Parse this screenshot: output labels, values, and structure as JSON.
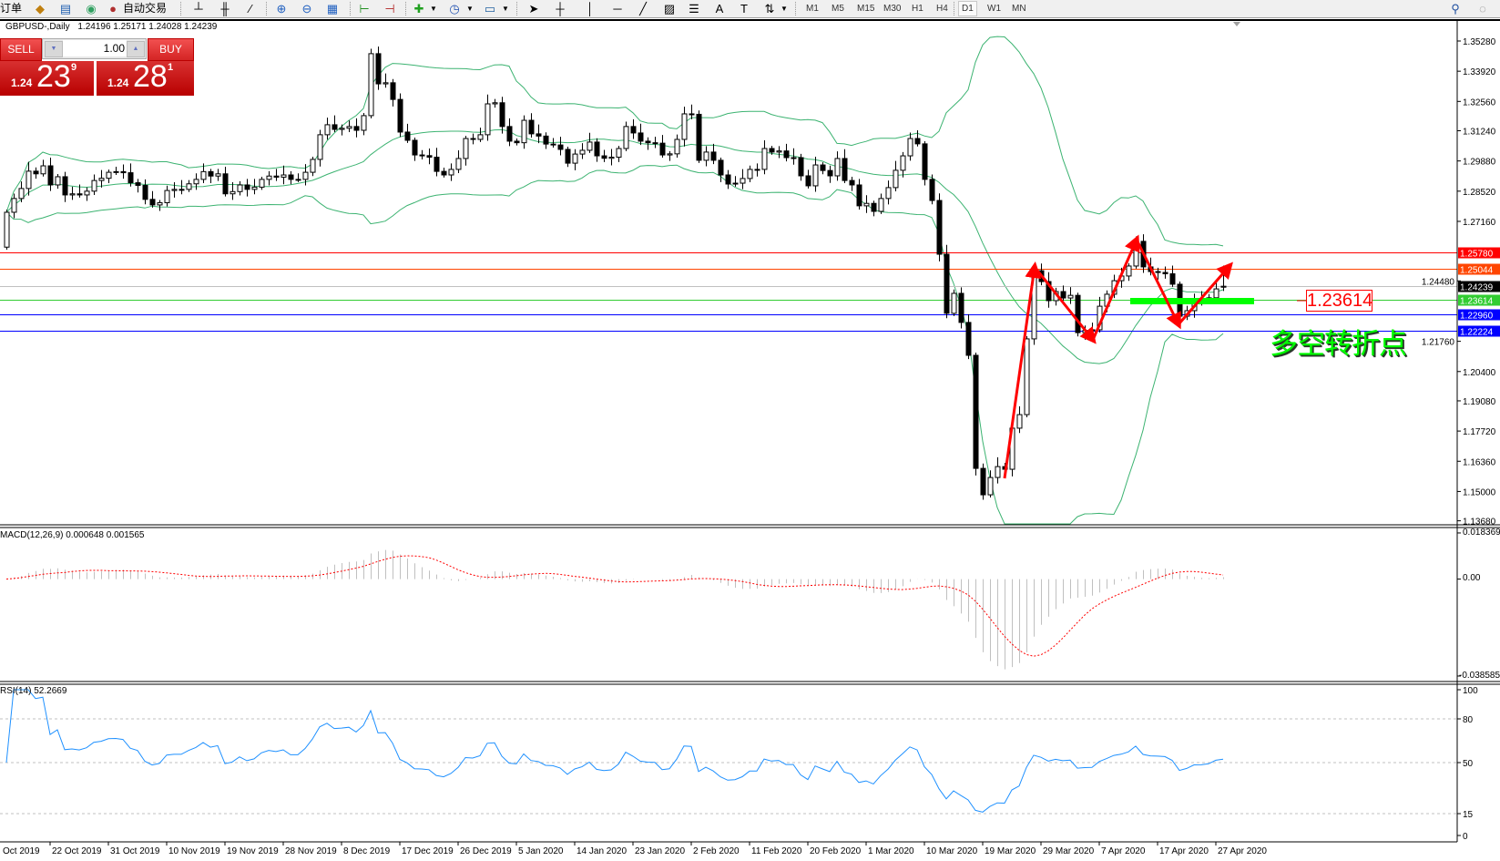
{
  "toolbar": {
    "orders_label": "订单",
    "autotrade_label": "自动交易",
    "timeframes": [
      "M1",
      "M5",
      "M15",
      "M30",
      "H1",
      "H4",
      "D1",
      "W1",
      "MN"
    ],
    "active_timeframe": "D1"
  },
  "header": {
    "symbol": "GBPUSD-,Daily",
    "open": "1.24196",
    "high": "1.25171",
    "low": "1.24028",
    "close": "1.24239"
  },
  "trade_panel": {
    "sell_label": "SELL",
    "buy_label": "BUY",
    "lot": "1.00",
    "sell_price": {
      "prefix": "1.24",
      "big": "23",
      "sup": "9"
    },
    "buy_price": {
      "prefix": "1.24",
      "big": "28",
      "sup": "1"
    }
  },
  "price_axis": {
    "ticks": [
      "1.35280",
      "1.33920",
      "1.32560",
      "1.31240",
      "1.29880",
      "1.28520",
      "1.27160",
      "1.24480",
      "1.21760",
      "1.20400",
      "1.19080",
      "1.17720",
      "1.16360",
      "1.15000",
      "1.13680"
    ]
  },
  "levels": [
    {
      "price": "1.25780",
      "color": "#ff0000"
    },
    {
      "price": "1.25044",
      "color": "#ff4500"
    },
    {
      "price": "1.24239",
      "color": "#000000",
      "line": "#c0c0c0"
    },
    {
      "price": "1.23614",
      "color": "#32cd32"
    },
    {
      "price": "1.22960",
      "color": "#0000ff"
    },
    {
      "price": "1.22224",
      "color": "#0000ff"
    }
  ],
  "annotation": {
    "price_label": "1.23614",
    "text": "多空转折点",
    "text_color": "#00ff00",
    "arrow_color": "#ff0000",
    "zone_color": "#00ff00"
  },
  "candles": {
    "closes": [
      1.2757,
      1.2819,
      1.2864,
      1.2942,
      1.293,
      1.2966,
      1.288,
      1.2917,
      1.2835,
      1.284,
      1.2835,
      1.2852,
      1.29,
      1.291,
      1.2937,
      1.294,
      1.2935,
      1.289,
      1.2878,
      1.2815,
      1.279,
      1.28,
      1.2855,
      1.286,
      1.286,
      1.2885,
      1.2905,
      1.294,
      1.292,
      1.293,
      1.284,
      1.285,
      1.288,
      1.286,
      1.287,
      1.2905,
      1.292,
      1.2915,
      1.2925,
      1.2905,
      1.2905,
      1.2937,
      1.2995,
      1.3106,
      1.3151,
      1.313,
      1.3135,
      1.3143,
      1.3126,
      1.3192,
      1.3471,
      1.3335,
      1.334,
      1.3265,
      1.3118,
      1.3081,
      1.3015,
      1.3012,
      1.3005,
      1.2941,
      1.2925,
      1.295,
      1.2999,
      1.3089,
      1.3085,
      1.3106,
      1.3245,
      1.325,
      1.3143,
      1.3077,
      1.307,
      1.3171,
      1.311,
      1.31,
      1.3064,
      1.306,
      1.304,
      1.2978,
      1.3019,
      1.3036,
      1.3073,
      1.3011,
      1.3,
      1.3005,
      1.3044,
      1.3143,
      1.3114,
      1.3077,
      1.307,
      1.3068,
      1.3015,
      1.302,
      1.3085,
      1.32,
      1.3198,
      1.2991,
      1.3028,
      1.2991,
      1.2925,
      1.2884,
      1.2888,
      1.2909,
      1.295,
      1.295,
      1.3044,
      1.3028,
      1.3033,
      1.3003,
      1.3003,
      1.2921,
      1.2876,
      1.297,
      1.2945,
      1.2921,
      1.2999,
      1.29,
      1.288,
      1.2786,
      1.2797,
      1.2761,
      1.2819,
      1.2868,
      1.2946,
      1.3011,
      1.3089,
      1.3065,
      1.2905,
      1.281,
      1.2568,
      1.2302,
      1.2392,
      1.2261,
      1.2113,
      1.1604,
      1.1485,
      1.1563,
      1.1612,
      1.16,
      1.1785,
      1.1846,
      1.2187,
      1.2494,
      1.2445,
      1.2359,
      1.24,
      1.2371,
      1.2383,
      1.2215,
      1.2225,
      1.2228,
      1.2334,
      1.2388,
      1.2449,
      1.247,
      1.2515,
      1.2626,
      1.2511,
      1.249,
      1.2486,
      1.248,
      1.2433,
      1.2289,
      1.2314,
      1.2359,
      1.236,
      1.2372,
      1.2412,
      1.24239
    ],
    "first_open": 1.26,
    "bull_color": "#ffffff",
    "bear_color": "#000000",
    "band_color": "#3cb371"
  },
  "macd": {
    "label": "MACD(12,26,9) 0.000648 0.001565",
    "max": "0.018369",
    "zero": "0.00",
    "min": "-0.038585",
    "hist_color": "#c0c0c0",
    "signal_color": "#ff0000"
  },
  "rsi": {
    "label": "RSI(14) 52.2669",
    "ticks": [
      "100",
      "80",
      "50",
      "15",
      "0"
    ],
    "levels": [
      80,
      50,
      15
    ],
    "color": "#1e90ff"
  },
  "time_axis": [
    {
      "bar": -1,
      "label": "Oct 2019"
    },
    {
      "bar": 6,
      "label": "22 Oct 2019"
    },
    {
      "bar": 14,
      "label": "31 Oct 2019"
    },
    {
      "bar": 22,
      "label": "10 Nov 2019"
    },
    {
      "bar": 30,
      "label": "19 Nov 2019"
    },
    {
      "bar": 38,
      "label": "28 Nov 2019"
    },
    {
      "bar": 46,
      "label": "8 Dec 2019"
    },
    {
      "bar": 54,
      "label": "17 Dec 2019"
    },
    {
      "bar": 62,
      "label": "26 Dec 2019"
    },
    {
      "bar": 70,
      "label": "5 Jan 2020"
    },
    {
      "bar": 78,
      "label": "14 Jan 2020"
    },
    {
      "bar": 86,
      "label": "23 Jan 2020"
    },
    {
      "bar": 94,
      "label": "2 Feb 2020"
    },
    {
      "bar": 102,
      "label": "11 Feb 2020"
    },
    {
      "bar": 110,
      "label": "20 Feb 2020"
    },
    {
      "bar": 118,
      "label": "1 Mar 2020"
    },
    {
      "bar": 126,
      "label": "10 Mar 2020"
    },
    {
      "bar": 134,
      "label": "19 Mar 2020"
    },
    {
      "bar": 142,
      "label": "29 Mar 2020"
    },
    {
      "bar": 150,
      "label": "7 Apr 2020"
    },
    {
      "bar": 158,
      "label": "17 Apr 2020"
    },
    {
      "bar": 166,
      "label": "27 Apr 2020"
    }
  ]
}
